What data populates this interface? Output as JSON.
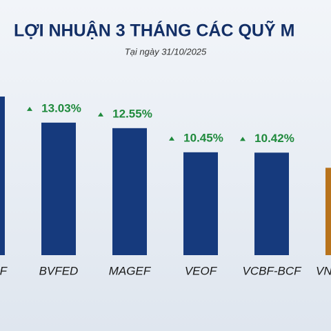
{
  "chart_data": {
    "type": "bar",
    "title": "LỢI NHUẬN 3 THÁNG CÁC QUỸ M",
    "subtitle": "Tại ngày 31/10/2025",
    "categories": [
      "F",
      "BVFED",
      "MAGEF",
      "VEOF",
      "VCBF-BCF",
      "VN"
    ],
    "values": [
      15.3,
      13.03,
      12.55,
      10.45,
      10.42,
      9.1
    ],
    "value_labels": [
      null,
      "13.03%",
      "12.55%",
      "10.45%",
      "10.42%",
      null
    ],
    "colors": [
      "#163a7d",
      "#163a7d",
      "#163a7d",
      "#163a7d",
      "#163a7d",
      "#b8731c"
    ],
    "label_color": "#1f8a3c",
    "ylim": [
      1.5,
      23.1
    ]
  }
}
